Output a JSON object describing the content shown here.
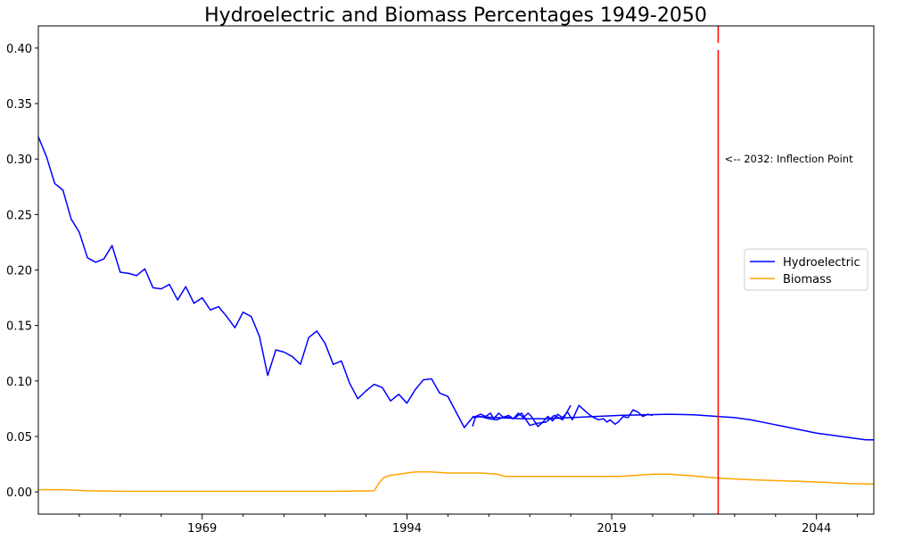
{
  "chart_data": {
    "type": "line",
    "title": "Hydroelectric and Biomass Percentages 1949-2050",
    "xlabel": "",
    "ylabel": "",
    "xlim": [
      1949,
      2051
    ],
    "ylim": [
      -0.02,
      0.42
    ],
    "x_ticks": [
      1969,
      1994,
      2019,
      2044
    ],
    "y_ticks": [
      0.0,
      0.05,
      0.1,
      0.15,
      0.2,
      0.25,
      0.3,
      0.35,
      0.4
    ],
    "y_tick_labels": [
      "0.00",
      "0.05",
      "0.10",
      "0.15",
      "0.20",
      "0.25",
      "0.30",
      "0.35",
      "0.40"
    ],
    "grid": false,
    "legend_position": "center-right",
    "colors": {
      "hydro": "#0000ff",
      "biomass": "#ffa500",
      "vline": "#ff0000"
    },
    "series": [
      {
        "name": "Hydroelectric",
        "color": "#0000ff",
        "points": [
          [
            1949,
            0.32
          ],
          [
            1950,
            0.302
          ],
          [
            1951,
            0.278
          ],
          [
            1952,
            0.272
          ],
          [
            1953,
            0.246
          ],
          [
            1954,
            0.234
          ],
          [
            1955,
            0.211
          ],
          [
            1956,
            0.207
          ],
          [
            1957,
            0.21
          ],
          [
            1958,
            0.222
          ],
          [
            1959,
            0.198
          ],
          [
            1960,
            0.197
          ],
          [
            1961,
            0.195
          ],
          [
            1962,
            0.201
          ],
          [
            1963,
            0.184
          ],
          [
            1964,
            0.183
          ],
          [
            1965,
            0.187
          ],
          [
            1966,
            0.173
          ],
          [
            1967,
            0.185
          ],
          [
            1968,
            0.17
          ],
          [
            1969,
            0.175
          ],
          [
            1970,
            0.164
          ],
          [
            1971,
            0.167
          ],
          [
            1972,
            0.158
          ],
          [
            1973,
            0.148
          ],
          [
            1974,
            0.162
          ],
          [
            1975,
            0.158
          ],
          [
            1976,
            0.14
          ],
          [
            1977,
            0.105
          ],
          [
            1978,
            0.128
          ],
          [
            1979,
            0.126
          ],
          [
            1980,
            0.122
          ],
          [
            1981,
            0.115
          ],
          [
            1982,
            0.139
          ],
          [
            1983,
            0.145
          ],
          [
            1984,
            0.134
          ],
          [
            1985,
            0.115
          ],
          [
            1986,
            0.118
          ],
          [
            1987,
            0.098
          ],
          [
            1988,
            0.084
          ],
          [
            1989,
            0.091
          ],
          [
            1990,
            0.097
          ],
          [
            1991,
            0.094
          ],
          [
            1992,
            0.082
          ],
          [
            1993,
            0.088
          ],
          [
            1994,
            0.08
          ],
          [
            1995,
            0.092
          ],
          [
            1996,
            0.101
          ],
          [
            1997,
            0.102
          ],
          [
            1998,
            0.089
          ],
          [
            1999,
            0.086
          ],
          [
            2000,
            0.072
          ],
          [
            2001,
            0.058
          ],
          [
            2002,
            0.067
          ],
          [
            2003,
            0.068
          ],
          [
            2004,
            0.066
          ],
          [
            2005,
            0.065
          ],
          [
            2006,
            0.068
          ],
          [
            2007,
            0.066
          ],
          [
            2008,
            0.071
          ],
          [
            2009,
            0.06
          ],
          [
            2010,
            0.062
          ],
          [
            2011,
            0.063
          ],
          [
            2012,
            0.069
          ],
          [
            2013,
            0.065
          ],
          [
            2014,
            0.078
          ]
        ]
      },
      {
        "name": "",
        "color": "#0000ff",
        "points": [
          [
            2002.0,
            0.059
          ],
          [
            2002.4,
            0.068
          ],
          [
            2003.0,
            0.07
          ],
          [
            2003.6,
            0.068
          ],
          [
            2004.2,
            0.071
          ],
          [
            2004.6,
            0.066
          ],
          [
            2005.2,
            0.071
          ],
          [
            2005.8,
            0.067
          ],
          [
            2006.4,
            0.069
          ],
          [
            2007.0,
            0.066
          ],
          [
            2007.6,
            0.071
          ],
          [
            2008.2,
            0.067
          ],
          [
            2008.8,
            0.071
          ],
          [
            2009.2,
            0.068
          ],
          [
            2010.0,
            0.059
          ],
          [
            2010.6,
            0.063
          ],
          [
            2011.2,
            0.068
          ],
          [
            2011.8,
            0.064
          ],
          [
            2012.4,
            0.07
          ],
          [
            2013.0,
            0.067
          ],
          [
            2013.6,
            0.072
          ],
          [
            2014.2,
            0.065
          ],
          [
            2015.0,
            0.078
          ],
          [
            2015.6,
            0.074
          ],
          [
            2016.2,
            0.07
          ],
          [
            2016.8,
            0.067
          ],
          [
            2017.4,
            0.065
          ],
          [
            2018.0,
            0.066
          ],
          [
            2018.4,
            0.063
          ],
          [
            2018.8,
            0.065
          ],
          [
            2019.4,
            0.061
          ],
          [
            2019.8,
            0.063
          ],
          [
            2020.4,
            0.068
          ],
          [
            2021.0,
            0.067
          ],
          [
            2021.6,
            0.074
          ],
          [
            2022.2,
            0.072
          ],
          [
            2022.8,
            0.068
          ],
          [
            2023.4,
            0.07
          ],
          [
            2024.0,
            0.069
          ]
        ]
      },
      {
        "name": "",
        "color": "#0000ff",
        "points": [
          [
            2002.0,
            0.068
          ],
          [
            2005.0,
            0.067
          ],
          [
            2008.0,
            0.066
          ],
          [
            2011.0,
            0.066
          ],
          [
            2014.0,
            0.067
          ],
          [
            2017.0,
            0.068
          ],
          [
            2020.0,
            0.069
          ],
          [
            2023.0,
            0.0695
          ],
          [
            2026.0,
            0.07
          ],
          [
            2029.0,
            0.0695
          ],
          [
            2032.0,
            0.068
          ],
          [
            2034.0,
            0.067
          ],
          [
            2036.0,
            0.065
          ],
          [
            2038.0,
            0.062
          ],
          [
            2040.0,
            0.059
          ],
          [
            2042.0,
            0.056
          ],
          [
            2044.0,
            0.053
          ],
          [
            2046.0,
            0.051
          ],
          [
            2048.0,
            0.049
          ],
          [
            2050.0,
            0.047
          ],
          [
            2051.0,
            0.047
          ]
        ]
      },
      {
        "name": "Biomass",
        "color": "#ffa500",
        "points": [
          [
            1949,
            0.002
          ],
          [
            1952,
            0.002
          ],
          [
            1955,
            0.001
          ],
          [
            1960,
            0.0005
          ],
          [
            1970,
            0.0005
          ],
          [
            1980,
            0.0005
          ],
          [
            1985,
            0.0005
          ],
          [
            1990,
            0.001
          ],
          [
            1990.6,
            0.008
          ],
          [
            1991.2,
            0.013
          ],
          [
            1992.0,
            0.015
          ],
          [
            1993.0,
            0.016
          ],
          [
            1994.0,
            0.017
          ],
          [
            1995.0,
            0.018
          ],
          [
            1997.0,
            0.018
          ],
          [
            1999.0,
            0.017
          ],
          [
            2003.0,
            0.017
          ],
          [
            2005.0,
            0.016
          ],
          [
            2006.0,
            0.014
          ],
          [
            2010.0,
            0.014
          ],
          [
            2015.0,
            0.014
          ],
          [
            2020.0,
            0.014
          ],
          [
            2022.0,
            0.015
          ],
          [
            2024.0,
            0.016
          ],
          [
            2026.0,
            0.016
          ],
          [
            2028.0,
            0.015
          ],
          [
            2032.0,
            0.0125
          ],
          [
            2036.0,
            0.011
          ],
          [
            2040.0,
            0.01
          ],
          [
            2044.0,
            0.009
          ],
          [
            2048.0,
            0.0075
          ],
          [
            2051.0,
            0.007
          ]
        ]
      }
    ],
    "vertical_line": {
      "x": 2032,
      "color": "#ff0000"
    },
    "annotation": {
      "text": "<-- 2032: Inflection Point",
      "x": 2033,
      "y": 0.3
    }
  }
}
